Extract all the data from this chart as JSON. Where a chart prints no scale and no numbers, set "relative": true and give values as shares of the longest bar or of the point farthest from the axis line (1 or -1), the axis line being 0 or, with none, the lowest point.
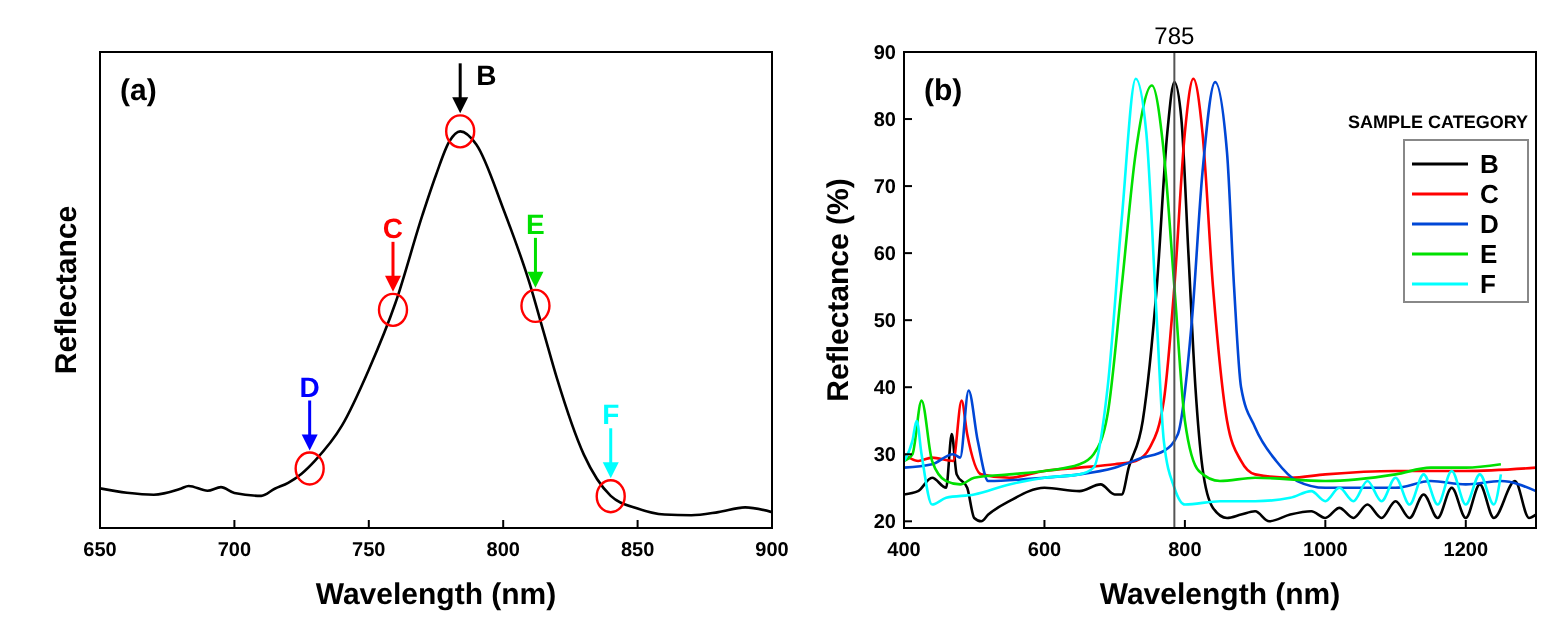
{
  "chart_data": [
    {
      "type": "line",
      "relative": true,
      "xlabel": "Wavelength (nm)",
      "ylabel": "Reflectance",
      "xlim": [
        650,
        900
      ],
      "xticks": [
        650,
        700,
        750,
        800,
        850,
        900
      ],
      "tick_labels": "x",
      "series": [
        {
          "color": "#000000",
          "x": [
            650,
            660,
            670,
            680,
            683,
            690,
            695,
            700,
            710,
            715,
            720,
            725,
            730,
            740,
            750,
            760,
            770,
            775,
            780,
            784,
            790,
            800,
            810,
            815,
            820,
            830,
            840,
            850,
            860,
            870,
            880,
            890,
            900
          ],
          "values": [
            0.1,
            0.089,
            0.084,
            0.099,
            0.106,
            0.094,
            0.103,
            0.088,
            0.081,
            0.099,
            0.114,
            0.137,
            0.17,
            0.258,
            0.399,
            0.569,
            0.79,
            0.89,
            0.975,
            1,
            0.967,
            0.805,
            0.613,
            0.495,
            0.377,
            0.185,
            0.081,
            0.049,
            0.034,
            0.032,
            0.04,
            0.052,
            0.04
          ]
        }
      ],
      "annotations": [
        "(a)",
        {
          "text": "D",
          "x": 728,
          "y": 0.15
        },
        {
          "text": "C",
          "x": 759,
          "y": 0.55
        },
        {
          "text": "B",
          "x": 784,
          "y": 1
        },
        {
          "text": "E",
          "x": 812,
          "y": 0.56
        },
        {
          "text": "F",
          "x": 840,
          "y": 0.08
        }
      ]
    },
    {
      "type": "line",
      "xlabel": "Wavelength (nm)",
      "ylabel": "Reflectance (%)",
      "xlim": [
        400,
        1300
      ],
      "xticks": [
        400,
        600,
        800,
        1000,
        1200
      ],
      "ylim": [
        19,
        90
      ],
      "yticks": [
        20,
        30,
        40,
        50,
        60,
        70,
        80,
        90
      ],
      "legend": "top right",
      "legend_title": "SAMPLE CATEGORY",
      "ref_lines": [
        {
          "axis": "x",
          "value": 785,
          "label": "785",
          "color": "#555555"
        }
      ],
      "annotations": [
        "(b)"
      ],
      "series": [
        {
          "name": "B",
          "color": "#000000",
          "x": [
            400,
            420,
            440,
            460,
            468,
            475,
            490,
            500,
            510,
            520,
            550,
            600,
            650,
            680,
            700,
            710,
            720,
            740,
            760,
            775,
            785,
            795,
            805,
            815,
            825,
            840,
            860,
            880,
            900,
            920,
            950,
            980,
            1000,
            1020,
            1040,
            1060,
            1080,
            1100,
            1120,
            1140,
            1160,
            1180,
            1200,
            1220,
            1240,
            1270,
            1290,
            1300
          ],
          "values": [
            24,
            24.5,
            26.5,
            25,
            33,
            27,
            25,
            20.5,
            20,
            21,
            23,
            25,
            24.5,
            25.5,
            24,
            24,
            28,
            35,
            55,
            78,
            85.5,
            80,
            60,
            40,
            28,
            22,
            20.5,
            21,
            21.5,
            20,
            21,
            21.5,
            20.5,
            22,
            20.5,
            22.5,
            20.5,
            23,
            20.5,
            24,
            20.5,
            25,
            20.5,
            25.5,
            20.5,
            26,
            20.5,
            21
          ]
        },
        {
          "name": "C",
          "color": "#ff0000",
          "x": [
            400,
            420,
            440,
            470,
            482,
            490,
            510,
            550,
            600,
            650,
            700,
            730,
            750,
            770,
            785,
            800,
            812,
            825,
            840,
            860,
            880,
            900,
            950,
            1000,
            1100,
            1200,
            1300
          ],
          "values": [
            30,
            29,
            29.5,
            29,
            38,
            33,
            27,
            26.5,
            27.5,
            28,
            28.5,
            29,
            31,
            38,
            55,
            78,
            86,
            78,
            55,
            35,
            29,
            27,
            26.5,
            27,
            27.5,
            27.5,
            28
          ]
        },
        {
          "name": "D",
          "color": "#0047d6",
          "x": [
            400,
            440,
            470,
            480,
            492,
            505,
            520,
            600,
            650,
            700,
            740,
            770,
            790,
            810,
            825,
            843,
            860,
            870,
            880,
            900,
            930,
            960,
            1000,
            1100,
            1150,
            1200,
            1250,
            1300
          ],
          "values": [
            28,
            28.5,
            30,
            29.5,
            39.5,
            32,
            26,
            26.5,
            27,
            28,
            29.5,
            30.5,
            33,
            50,
            72,
            85.5,
            75,
            55,
            40,
            34,
            29,
            26,
            25,
            25,
            26,
            25.5,
            26,
            24.5
          ]
        },
        {
          "name": "E",
          "color": "#00e000",
          "x": [
            400,
            412,
            425,
            440,
            460,
            480,
            500,
            550,
            600,
            650,
            670,
            690,
            710,
            730,
            753,
            770,
            785,
            800,
            820,
            850,
            900,
            1000,
            1100,
            1150,
            1200,
            1250
          ],
          "values": [
            29,
            30,
            38,
            29,
            26,
            25.5,
            26.5,
            27,
            27.5,
            28.5,
            30,
            36,
            55,
            75,
            85,
            75,
            55,
            35,
            27.5,
            26,
            26.5,
            26,
            27,
            28,
            28,
            28.5
          ]
        },
        {
          "name": "F",
          "color": "#00ffff",
          "x": [
            400,
            412,
            418,
            425,
            440,
            460,
            500,
            550,
            600,
            650,
            670,
            690,
            710,
            730,
            745,
            760,
            770,
            785,
            800,
            850,
            900,
            950,
            980,
            1000,
            1020,
            1040,
            1060,
            1080,
            1100,
            1120,
            1140,
            1160,
            1180,
            1200,
            1220,
            1240,
            1250
          ],
          "values": [
            29,
            32,
            35,
            30,
            22.5,
            23.5,
            24,
            25.5,
            26.5,
            27,
            28,
            40,
            65,
            86,
            78,
            50,
            32,
            25,
            22.5,
            23,
            23,
            23.5,
            24.5,
            23,
            25,
            23,
            26,
            23,
            26.5,
            22.5,
            27,
            22.5,
            27.5,
            22.5,
            27,
            22.5,
            27
          ]
        }
      ]
    }
  ]
}
